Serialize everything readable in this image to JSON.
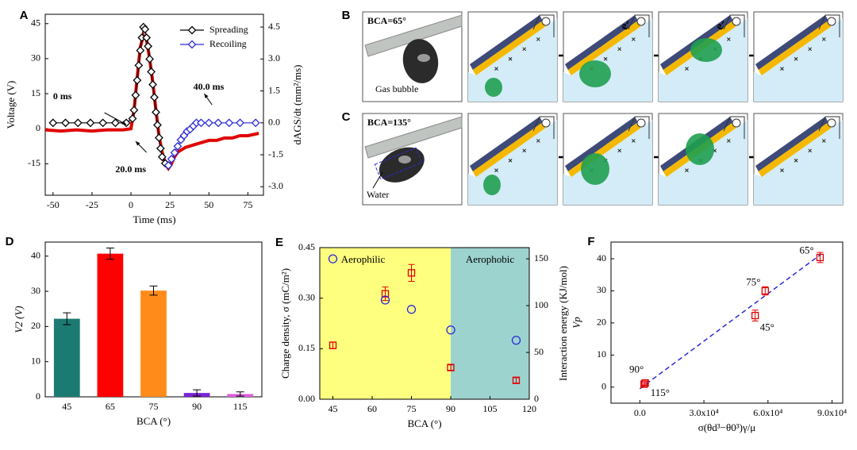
{
  "chart_data": [
    {
      "type": "line",
      "label": "A",
      "xlabel": "Time (ms)",
      "ylabel": "Voltage (V)",
      "y2label": "dAGS/dt (mm²/ms)",
      "ycolor": "#e00000",
      "xlim": [
        -55,
        85
      ],
      "xticks": [
        -50,
        -25,
        0,
        25,
        50,
        75
      ],
      "ylim": [
        -28.5,
        49
      ],
      "yticks": [
        -15,
        0,
        15,
        30,
        45
      ],
      "y2lim": [
        -3.4,
        5.1
      ],
      "y2ticks": [
        {
          "value": -3,
          "label": "-3.0"
        },
        -1.5,
        {
          "value": 0,
          "label": "0.0"
        },
        1.5,
        {
          "value": 3,
          "label": "3.0"
        },
        4.5
      ],
      "legend": "upper right",
      "annotations": [
        "0 ms",
        "20.0 ms",
        "40.0 ms"
      ],
      "series": [
        {
          "color": "#e00000",
          "marker": "none",
          "x": [
            -55,
            -45,
            -35,
            -25,
            -15,
            -5,
            0,
            2,
            4,
            6,
            8,
            10,
            12,
            14,
            16,
            18,
            20,
            22,
            24,
            26,
            28,
            30,
            35,
            40,
            45,
            50,
            55,
            60,
            65,
            70,
            75,
            82
          ],
          "values": [
            -0.5,
            -1,
            -0.5,
            -1,
            -0.5,
            -0.5,
            0,
            8,
            22,
            35,
            40,
            38,
            30,
            20,
            8,
            -3,
            -10,
            -15,
            -17,
            -15,
            -12,
            -10,
            -8,
            -7,
            -6,
            -5,
            -5,
            -4,
            -4,
            -3,
            -3,
            -2
          ]
        },
        {
          "name": "Spreading",
          "color": "#000000",
          "marker": "diamond",
          "axis": "y2",
          "x": [
            -50,
            -42,
            -34,
            -26,
            -18,
            -10,
            -3,
            1,
            2,
            3,
            4,
            5,
            6,
            7,
            8,
            9,
            10,
            11,
            12,
            13,
            14,
            15,
            16,
            17,
            18,
            19,
            20,
            22,
            24
          ],
          "values": [
            0,
            0,
            0,
            0,
            0,
            0,
            0,
            0.2,
            0.6,
            1.3,
            2.0,
            2.7,
            3.4,
            4.0,
            4.5,
            4.4,
            4.0,
            3.6,
            3.0,
            2.4,
            1.8,
            1.2,
            0.5,
            -0.1,
            -0.7,
            -1.2,
            -1.6,
            -1.9,
            -2.0
          ]
        },
        {
          "name": "Recoiling",
          "color": "#2a2ad8",
          "marker": "diamond",
          "axis": "y2",
          "x": [
            24,
            26,
            28,
            30,
            32,
            34,
            36,
            38,
            40,
            42,
            45,
            50,
            56,
            63,
            70,
            80
          ],
          "values": [
            -2.0,
            -1.7,
            -1.4,
            -1.1,
            -0.8,
            -0.6,
            -0.4,
            -0.3,
            -0.15,
            0,
            0,
            0,
            0,
            0,
            0,
            0
          ]
        }
      ]
    },
    {
      "type": "bar",
      "label": "D",
      "xlabel": "BCA (°)",
      "ylabel": "V2 (V)",
      "categories": [
        "45",
        "65",
        "75",
        "90",
        "115"
      ],
      "values": [
        22.2,
        40.7,
        30.2,
        1.1,
        0.8
      ],
      "errors": [
        1.7,
        1.6,
        1.3,
        0.9,
        0.6
      ],
      "colors": [
        "#1b7b73",
        "#ff0000",
        "#ff8c1a",
        "#7a22d6",
        "#e05be0"
      ],
      "ylim": [
        0,
        44
      ],
      "yticks": [
        0,
        10,
        20,
        30,
        40
      ]
    },
    {
      "type": "scatter",
      "label": "E",
      "xlabel": "BCA (°)",
      "ylabel": "Charge density, σ (mC/m²)",
      "y2label": "Interaction energy (KJ/mol)",
      "ycolor": "#e00000",
      "y2color": "#2a2ad8",
      "xlim": [
        40,
        120
      ],
      "xticks": [
        45,
        60,
        75,
        90,
        105,
        120
      ],
      "ylim": [
        0,
        0.45
      ],
      "yticks": [
        {
          "value": 0,
          "label": "0.00"
        },
        0.15,
        {
          "value": 0.3,
          "label": "0.30"
        },
        0.45
      ],
      "y2lim": [
        0,
        162
      ],
      "y2ticks": [
        0,
        50,
        100,
        150
      ],
      "regions": [
        {
          "label": "Aerophilic",
          "from": 40,
          "to": 90,
          "color": "#ffff7f"
        },
        {
          "label": "Aerophobic",
          "from": 90,
          "to": 120,
          "color": "#9dd3cf"
        }
      ],
      "series": [
        {
          "color": "#e00000",
          "marker": "square",
          "x": [
            45,
            65,
            75,
            90,
            115
          ],
          "values": [
            0.16,
            0.313,
            0.375,
            0.094,
            0.056
          ],
          "errors": [
            0.01,
            0.02,
            0.025,
            0.008,
            0.008
          ]
        },
        {
          "color": "#2a2ad8",
          "marker": "circle",
          "axis": "y2",
          "x": [
            45,
            65,
            75,
            90,
            115
          ],
          "values": [
            150,
            106,
            96,
            74,
            63
          ]
        }
      ]
    },
    {
      "type": "scatter",
      "label": "F",
      "xlabel": "σ(θd³−θ0³)γ/μ",
      "ylabel": "Vp",
      "xlim": [
        -13500,
        95000
      ],
      "xticks": [
        {
          "value": 0,
          "label": "0.0"
        },
        {
          "value": 30000,
          "label": "3.0x10⁴"
        },
        {
          "value": 60000,
          "label": "6.0x10⁴"
        },
        {
          "value": 90000,
          "label": "9.0x10⁴"
        }
      ],
      "ylim": [
        -5,
        45.2
      ],
      "yticks": [
        0,
        10,
        20,
        30,
        40
      ],
      "fit": {
        "color": "#2a2ad8",
        "x": [
          0,
          85000
        ],
        "values": [
          -0.5,
          41.5
        ]
      },
      "series": [
        {
          "color": "#e00000",
          "marker": "square",
          "x": [
            2500,
            2000,
            54000,
            58700,
            84400
          ],
          "values": [
            1.3,
            0.9,
            22.3,
            30,
            40.4
          ],
          "errors": [
            0.6,
            0.5,
            1.7,
            1.3,
            1.6
          ],
          "labels": [
            "90°",
            "115°",
            "45°",
            "75°",
            "65°"
          ]
        }
      ]
    }
  ],
  "diagrams": [
    {
      "label": "B",
      "bca": "BCA=65°",
      "caption": "Gas bubble",
      "charge": "e-"
    },
    {
      "label": "C",
      "bca": "BCA=135°",
      "caption": "Water"
    }
  ]
}
